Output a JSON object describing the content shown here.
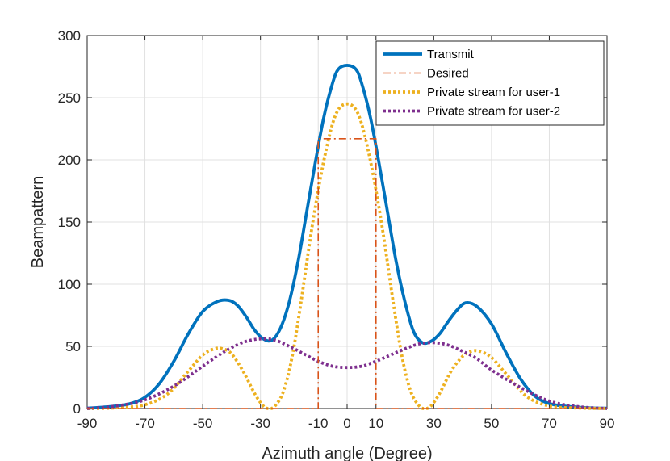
{
  "chart_data": {
    "type": "line",
    "title": "",
    "xlabel": "Azimuth angle (Degree)",
    "ylabel": "Beampattern",
    "xlim": [
      -90,
      90
    ],
    "ylim": [
      0,
      300
    ],
    "xticks": [
      -90,
      -70,
      -50,
      -30,
      -10,
      0,
      10,
      30,
      50,
      70,
      90
    ],
    "yticks": [
      0,
      50,
      100,
      150,
      200,
      250,
      300
    ],
    "grid": true,
    "legend_position": "top-right",
    "series": [
      {
        "name": "Transmit",
        "color": "#0072BD",
        "style": "solid",
        "x": [
          -90,
          -85,
          -80,
          -75,
          -70,
          -65,
          -60,
          -55,
          -50,
          -45,
          -41,
          -38,
          -35,
          -32,
          -29,
          -26,
          -23,
          -20,
          -17,
          -14,
          -11,
          -8,
          -5,
          -3,
          0,
          3,
          5,
          8,
          11,
          14,
          17,
          20,
          23,
          26,
          29,
          32,
          35,
          38,
          41,
          45,
          50,
          55,
          60,
          65,
          70,
          75,
          80,
          85,
          90
        ],
        "y": [
          0.3,
          1,
          2,
          4,
          9,
          20,
          38,
          60,
          78,
          86,
          87,
          83,
          74,
          63,
          56,
          55,
          65,
          86,
          118,
          158,
          198,
          235,
          262,
          273,
          276,
          273,
          262,
          235,
          198,
          158,
          118,
          86,
          62,
          53,
          54,
          60,
          70,
          79,
          85,
          82,
          68,
          45,
          24,
          10,
          4,
          2,
          1,
          0.4,
          0.2
        ]
      },
      {
        "name": "Desired",
        "color": "#D95319",
        "style": "dashdot",
        "x": [
          -90,
          -10,
          -10,
          10,
          10,
          90
        ],
        "y": [
          0,
          0,
          217,
          217,
          0,
          0
        ]
      },
      {
        "name": "Private stream for user-1",
        "color": "#EDB120",
        "style": "dotted",
        "x": [
          -90,
          -80,
          -70,
          -62,
          -55,
          -50,
          -46,
          -43,
          -40,
          -36,
          -32,
          -29,
          -27,
          -25,
          -22,
          -19,
          -16,
          -12,
          -8,
          -4,
          0,
          4,
          8,
          12,
          16,
          19,
          22,
          25,
          27,
          29,
          32,
          36,
          40,
          43,
          46,
          50,
          55,
          62,
          70,
          80,
          90
        ],
        "y": [
          0,
          0.5,
          3,
          12,
          30,
          43,
          48,
          48,
          44,
          30,
          12,
          2,
          0,
          2,
          14,
          42,
          85,
          148,
          200,
          236,
          245,
          236,
          200,
          148,
          85,
          42,
          14,
          2,
          0,
          2,
          12,
          30,
          42,
          46,
          46,
          41,
          28,
          10,
          2,
          0.4,
          0
        ],
        "value_label": ""
      },
      {
        "name": "Private stream for user-2",
        "color": "#7E2F8E",
        "style": "dotted",
        "x": [
          -90,
          -80,
          -70,
          -60,
          -50,
          -45,
          -40,
          -35,
          -30,
          -25,
          -20,
          -15,
          -10,
          -5,
          0,
          5,
          10,
          15,
          20,
          25,
          30,
          35,
          40,
          45,
          50,
          60,
          70,
          80,
          90
        ],
        "y": [
          0,
          2,
          7,
          18,
          34,
          42,
          49,
          54,
          56,
          55,
          50,
          44,
          38,
          34,
          33,
          34,
          38,
          43,
          48,
          52,
          53,
          51,
          46,
          40,
          31,
          17,
          6,
          1.5,
          0
        ]
      }
    ]
  }
}
